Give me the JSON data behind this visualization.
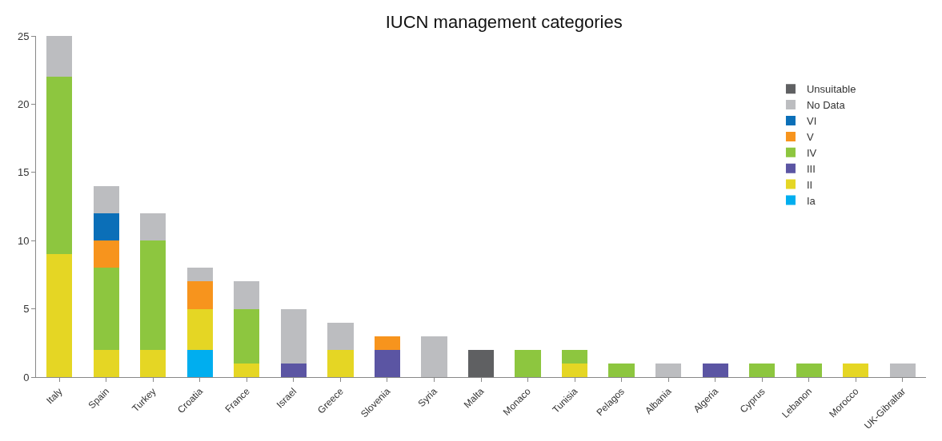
{
  "chart_data": {
    "type": "bar",
    "title": "IUCN management categories",
    "stacked": true,
    "legend": "top right",
    "grid": false,
    "categories": [
      "Italy",
      "Spain",
      "Turkey",
      "Croatia",
      "France",
      "Israel",
      "Greece",
      "Slovenia",
      "Syria",
      "Malta",
      "Monaco",
      "Tunisia",
      "Pelagos",
      "Albania",
      "Algeria",
      "Cyprus",
      "Lebanon",
      "Morocco",
      "UK-Gibraltar"
    ],
    "ylim": [
      0,
      25
    ],
    "yticks": [
      0,
      5,
      10,
      15,
      20,
      25
    ],
    "series": [
      {
        "name": "Ia",
        "color": "#00aeef",
        "values": [
          0,
          0,
          0,
          2,
          0,
          0,
          0,
          0,
          0,
          0,
          0,
          0,
          0,
          0,
          0,
          0,
          0,
          0,
          0
        ]
      },
      {
        "name": "II",
        "color": "#e5d624",
        "values": [
          9,
          2,
          2,
          3,
          1,
          0,
          2,
          0,
          0,
          0,
          0,
          1,
          0,
          0,
          0,
          0,
          0,
          1,
          0
        ]
      },
      {
        "name": "III",
        "color": "#5b55a3",
        "values": [
          0,
          0,
          0,
          0,
          0,
          1,
          0,
          2,
          0,
          0,
          0,
          0,
          0,
          0,
          1,
          0,
          0,
          0,
          0
        ]
      },
      {
        "name": "IV",
        "color": "#8dc63f",
        "values": [
          13,
          6,
          8,
          0,
          4,
          0,
          0,
          0,
          0,
          0,
          2,
          1,
          1,
          0,
          0,
          1,
          1,
          0,
          0
        ]
      },
      {
        "name": "V",
        "color": "#f7941d",
        "values": [
          0,
          2,
          0,
          2,
          0,
          0,
          0,
          1,
          0,
          0,
          0,
          0,
          0,
          0,
          0,
          0,
          0,
          0,
          0
        ]
      },
      {
        "name": "VI",
        "color": "#0b6fb8",
        "values": [
          0,
          2,
          0,
          0,
          0,
          0,
          0,
          0,
          0,
          0,
          0,
          0,
          0,
          0,
          0,
          0,
          0,
          0,
          0
        ]
      },
      {
        "name": "No Data",
        "color": "#bcbdc0",
        "values": [
          3,
          2,
          2,
          1,
          2,
          4,
          2,
          0,
          3,
          0,
          0,
          0,
          0,
          1,
          0,
          0,
          0,
          0,
          1
        ]
      },
      {
        "name": "Unsuitable",
        "color": "#5f6062",
        "values": [
          0,
          0,
          0,
          0,
          0,
          0,
          0,
          0,
          0,
          2,
          0,
          0,
          0,
          0,
          0,
          0,
          0,
          0,
          0
        ]
      }
    ]
  }
}
